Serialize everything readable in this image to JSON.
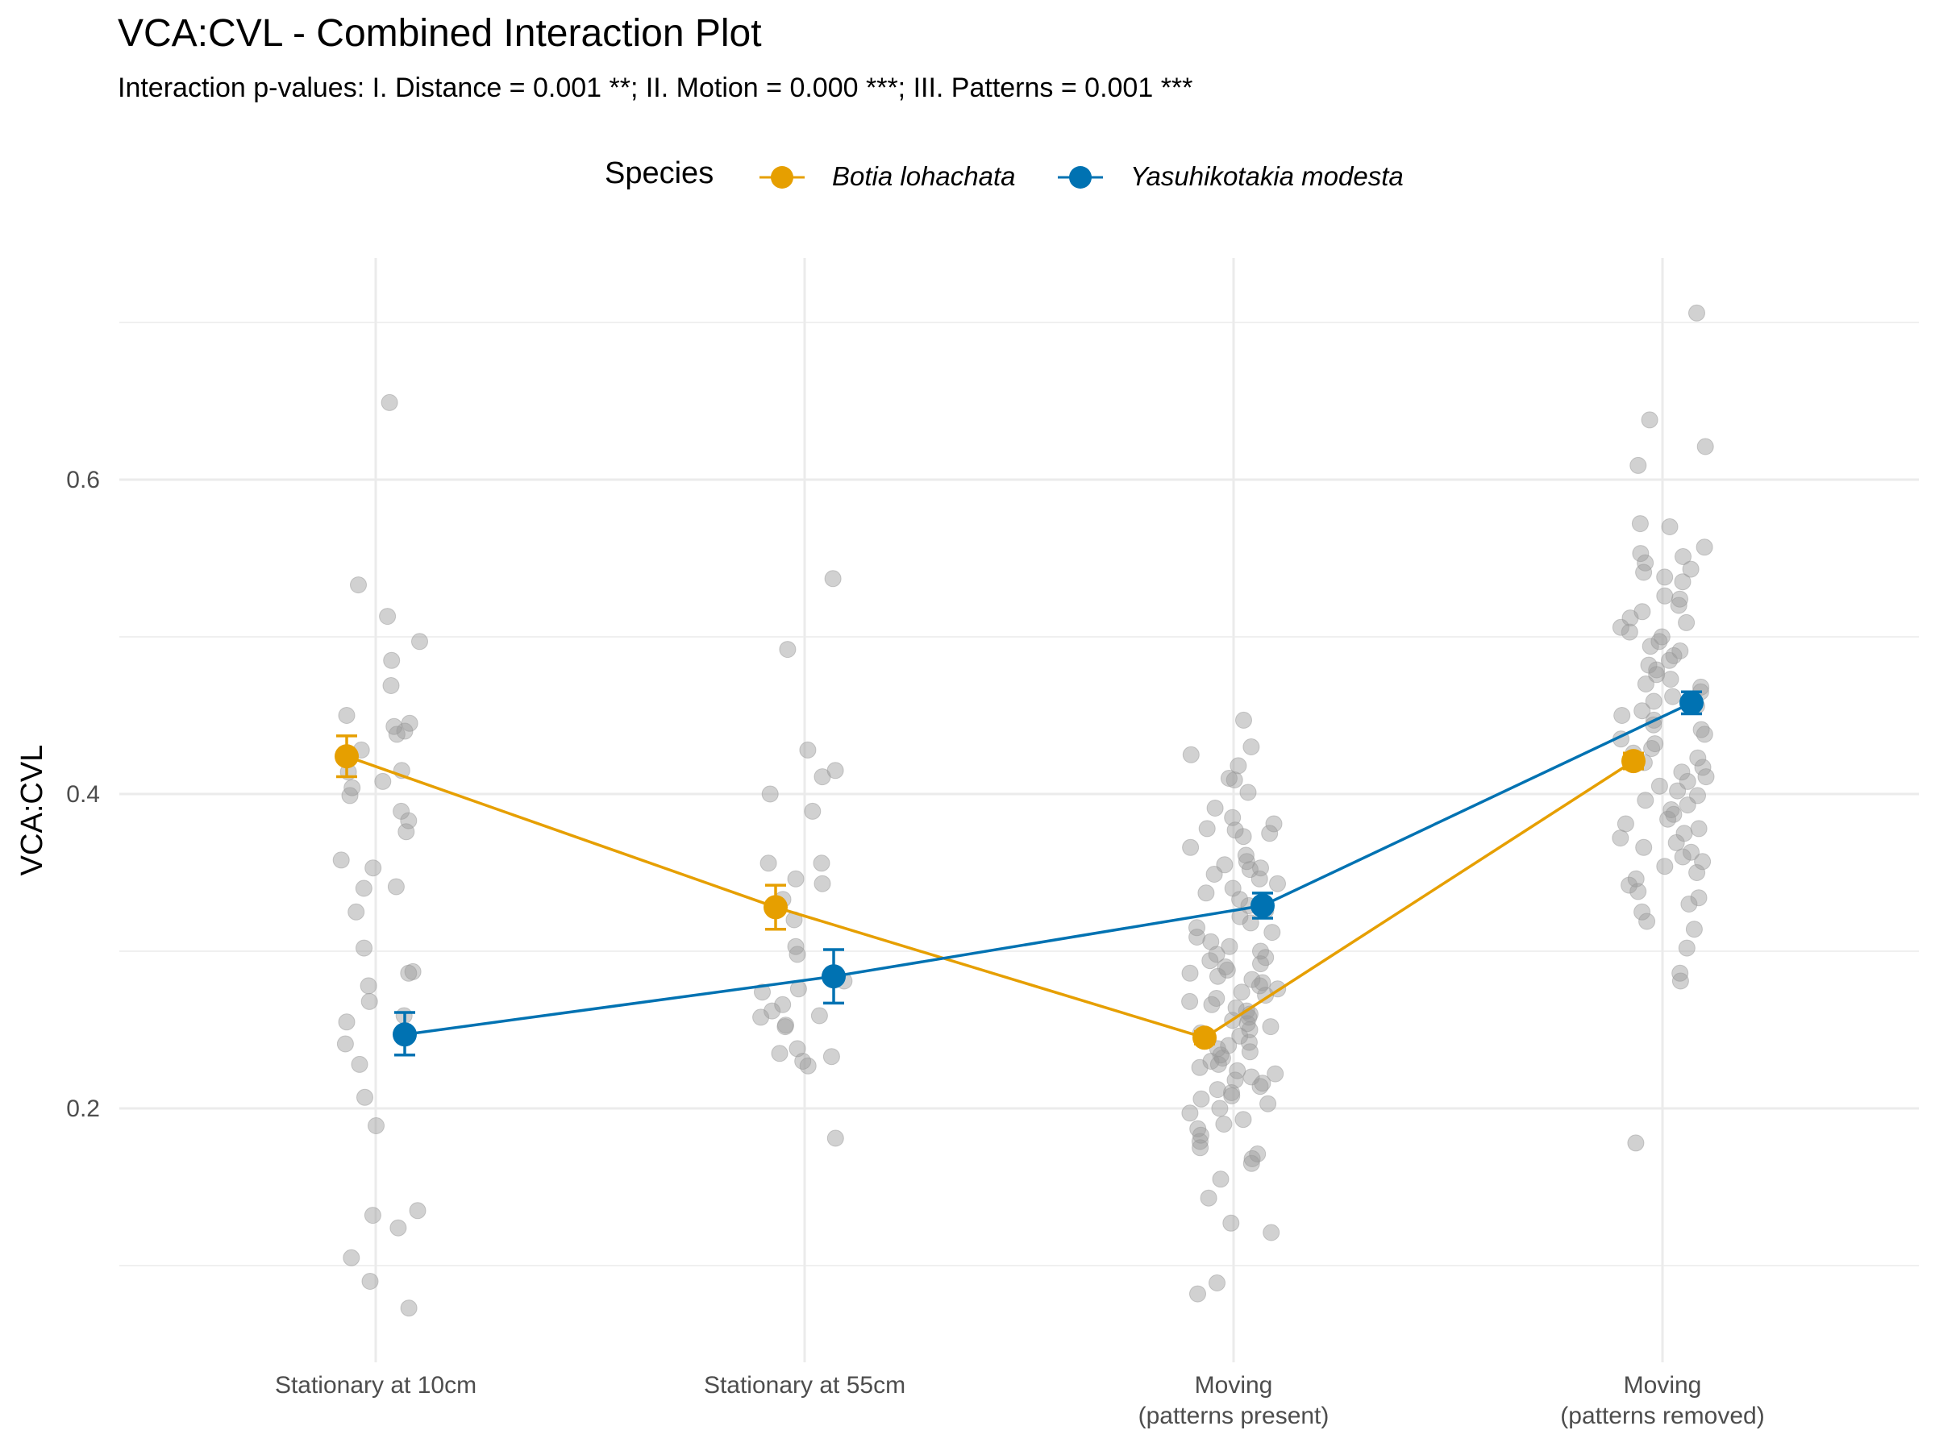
{
  "chart_data": {
    "type": "line",
    "title": "VCA:CVL - Combined Interaction Plot",
    "subtitle": "Interaction p-values: I. Distance = 0.001 **; II. Motion = 0.000 ***; III. Patterns = 0.001 ***",
    "ylabel": "VCA:CVL",
    "xlabel": "",
    "ylim": [
      0.09,
      0.72
    ],
    "yticks": [
      0.2,
      0.4,
      0.6
    ],
    "ytick_labels": [
      "0.2",
      "0.4",
      "0.6"
    ],
    "grid": true,
    "legend": {
      "title": "Species",
      "position": "top"
    },
    "categories": [
      [
        "Stationary at 10cm"
      ],
      [
        "Stationary at 55cm"
      ],
      [
        "Moving",
        "(patterns present)"
      ],
      [
        "Moving",
        "(patterns removed)"
      ]
    ],
    "series": [
      {
        "name": "Botia lohachata",
        "color": "#E69F00",
        "values": [
          0.424,
          0.328,
          0.245,
          0.421
        ],
        "error_low": [
          0.411,
          0.314,
          0.241,
          0.416
        ],
        "error_high": [
          0.437,
          0.342,
          0.249,
          0.426
        ]
      },
      {
        "name": "Yasuhikotakia modesta",
        "color": "#0072B2",
        "values": [
          0.247,
          0.284,
          0.329,
          0.458
        ],
        "error_low": [
          0.234,
          0.267,
          0.321,
          0.451
        ],
        "error_high": [
          0.261,
          0.301,
          0.337,
          0.465
        ]
      }
    ],
    "raw_points_color": "#999999",
    "raw_points": [
      {
        "x": 1,
        "y": [
          0.649,
          0.533,
          0.513,
          0.497,
          0.485,
          0.469,
          0.45,
          0.445,
          0.443,
          0.44,
          0.438,
          0.428,
          0.415,
          0.414,
          0.408,
          0.404,
          0.399,
          0.389,
          0.383,
          0.376,
          0.358,
          0.353,
          0.341,
          0.34,
          0.325,
          0.302,
          0.287,
          0.286,
          0.278,
          0.268,
          0.259,
          0.255,
          0.241,
          0.228,
          0.207,
          0.189,
          0.135,
          0.132,
          0.124,
          0.105,
          0.09,
          0.073
        ]
      },
      {
        "x": 2,
        "y": [
          0.537,
          0.492,
          0.428,
          0.415,
          0.411,
          0.4,
          0.389,
          0.356,
          0.356,
          0.346,
          0.343,
          0.333,
          0.32,
          0.303,
          0.298,
          0.281,
          0.276,
          0.274,
          0.266,
          0.262,
          0.259,
          0.258,
          0.253,
          0.252,
          0.238,
          0.235,
          0.233,
          0.23,
          0.227,
          0.181
        ]
      },
      {
        "x": 3,
        "y": [
          0.447,
          0.43,
          0.425,
          0.418,
          0.41,
          0.409,
          0.401,
          0.391,
          0.385,
          0.381,
          0.378,
          0.377,
          0.375,
          0.373,
          0.366,
          0.361,
          0.357,
          0.355,
          0.353,
          0.352,
          0.349,
          0.346,
          0.343,
          0.34,
          0.337,
          0.333,
          0.329,
          0.326,
          0.322,
          0.318,
          0.315,
          0.312,
          0.309,
          0.306,
          0.303,
          0.3,
          0.298,
          0.296,
          0.294,
          0.292,
          0.29,
          0.288,
          0.286,
          0.284,
          0.282,
          0.28,
          0.278,
          0.276,
          0.274,
          0.272,
          0.27,
          0.268,
          0.266,
          0.264,
          0.262,
          0.26,
          0.258,
          0.256,
          0.254,
          0.252,
          0.25,
          0.248,
          0.246,
          0.244,
          0.242,
          0.24,
          0.238,
          0.236,
          0.234,
          0.232,
          0.23,
          0.228,
          0.226,
          0.224,
          0.222,
          0.22,
          0.218,
          0.216,
          0.214,
          0.212,
          0.21,
          0.208,
          0.206,
          0.203,
          0.2,
          0.197,
          0.193,
          0.19,
          0.187,
          0.183,
          0.179,
          0.175,
          0.171,
          0.168,
          0.165,
          0.155,
          0.143,
          0.127,
          0.121,
          0.089,
          0.082
        ]
      },
      {
        "x": 4,
        "y": [
          0.706,
          0.638,
          0.621,
          0.609,
          0.572,
          0.57,
          0.557,
          0.553,
          0.551,
          0.547,
          0.543,
          0.541,
          0.538,
          0.535,
          0.526,
          0.524,
          0.52,
          0.516,
          0.512,
          0.509,
          0.506,
          0.503,
          0.5,
          0.497,
          0.494,
          0.491,
          0.488,
          0.485,
          0.482,
          0.479,
          0.476,
          0.473,
          0.47,
          0.468,
          0.465,
          0.462,
          0.459,
          0.456,
          0.453,
          0.45,
          0.447,
          0.444,
          0.441,
          0.438,
          0.435,
          0.432,
          0.429,
          0.426,
          0.423,
          0.42,
          0.417,
          0.414,
          0.411,
          0.408,
          0.405,
          0.402,
          0.399,
          0.396,
          0.393,
          0.39,
          0.387,
          0.384,
          0.381,
          0.378,
          0.375,
          0.372,
          0.369,
          0.366,
          0.363,
          0.36,
          0.357,
          0.354,
          0.35,
          0.346,
          0.342,
          0.338,
          0.334,
          0.33,
          0.325,
          0.319,
          0.314,
          0.302,
          0.286,
          0.281,
          0.178
        ]
      }
    ]
  }
}
